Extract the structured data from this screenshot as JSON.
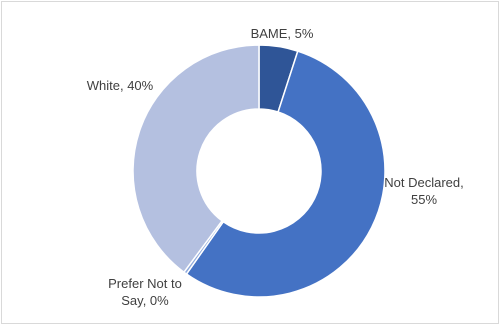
{
  "chart_data": {
    "type": "pie",
    "style": "doughnut",
    "slices": [
      {
        "label": "BAME",
        "value": 5,
        "color": "#2f5597",
        "data_label_lines": [
          "BAME, 5%"
        ]
      },
      {
        "label": "Not Declared",
        "value": 55,
        "color": "#4472c4",
        "data_label_lines": [
          "Not Declared,",
          "55%"
        ]
      },
      {
        "label": "Prefer Not to Say",
        "value": 0.4,
        "color": "#8faadc",
        "data_label_lines": [
          "Prefer Not to",
          "Say, 0%"
        ]
      },
      {
        "label": "White",
        "value": 40,
        "color": "#b4c0e0",
        "data_label_lines": [
          "White, 40%"
        ]
      }
    ]
  }
}
